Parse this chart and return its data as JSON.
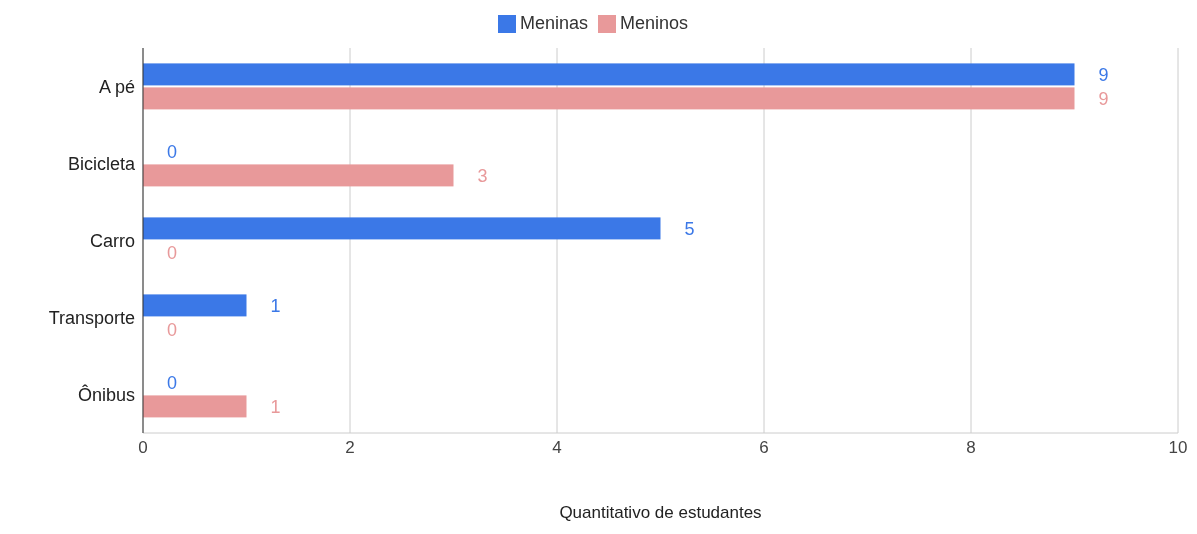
{
  "chart_data": {
    "type": "bar",
    "orientation": "horizontal",
    "categories": [
      "A pé",
      "Bicicleta",
      "Carro",
      "Transporte",
      "Ônibus"
    ],
    "series": [
      {
        "name": "Meninas",
        "color": "#3b78e7",
        "values": [
          9,
          0,
          5,
          1,
          0
        ]
      },
      {
        "name": "Meninos",
        "color": "#e8999a",
        "values": [
          9,
          3,
          0,
          0,
          1
        ]
      }
    ],
    "xlabel": "Quantitativo de estudantes",
    "xlim": [
      0,
      10
    ],
    "xticks": [
      0,
      2,
      4,
      6,
      8,
      10
    ],
    "grid": "x",
    "legend": "top",
    "data_labels": true
  }
}
